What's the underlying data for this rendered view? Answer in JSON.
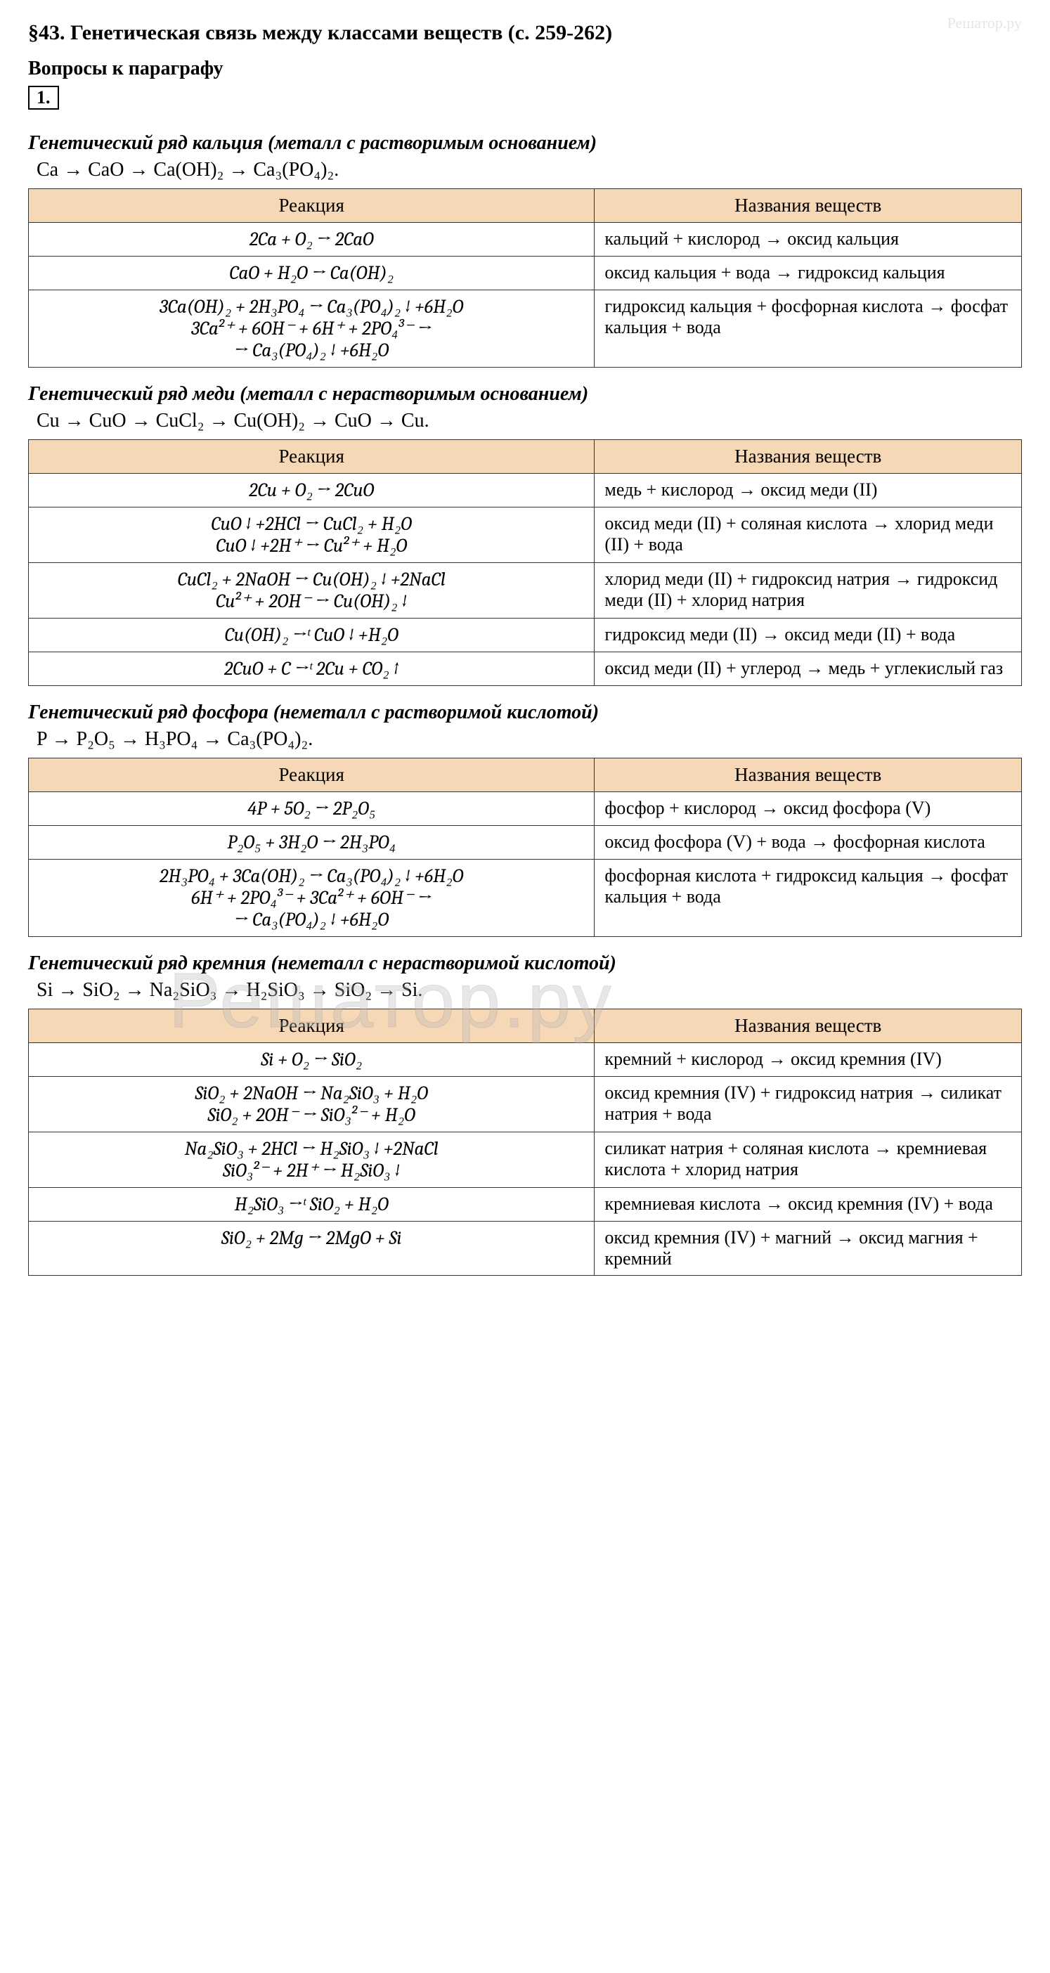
{
  "header": {
    "title": "§43. Генетическая связь между классами веществ (с. 259-262)",
    "subtitle": "Вопросы к параграфу",
    "question_number": "1."
  },
  "watermark": {
    "big": "Решатор.ру",
    "small": "Решатор.ру"
  },
  "sections": [
    {
      "title": "Генетический ряд кальция (металл с растворимым основанием)",
      "chain": "Ca  →  CaO  →  Ca(OH)₂  →  Ca₃(PO₄)₂.",
      "table": {
        "head_reaction": "Реакция",
        "head_names": "Названия веществ",
        "rows": [
          {
            "reaction": "2Ca + O₂ → 2CaO",
            "names": "кальций + кислород → оксид кальция"
          },
          {
            "reaction": "CaO + H₂O → Ca(OH)₂",
            "names": "оксид кальция + вода → гидроксид кальция"
          },
          {
            "reaction": "3Ca(OH)₂ + 2H₃PO₄ → Ca₃(PO₄)₂ ↓ +6H₂O\n3Ca²⁺ + 6OH⁻ + 6H⁺ + 2PO₄³⁻ →\n→ Ca₃(PO₄)₂ ↓ +6H₂O",
            "names": "гидроксид кальция + фосфорная кислота → фосфат кальция + вода"
          }
        ]
      }
    },
    {
      "title": "Генетический ряд меди (металл с нерастворимым основанием)",
      "chain": "Cu → CuO → CuCl₂ → Cu(OH)₂ → CuO → Cu.",
      "table": {
        "head_reaction": "Реакция",
        "head_names": "Названия веществ",
        "rows": [
          {
            "reaction": "2Cu + O₂ → 2CuO",
            "names": "медь + кислород → оксид меди (II)"
          },
          {
            "reaction": "CuO ↓ +2HCl → CuCl₂ + H₂O\nCuO ↓ +2H⁺ → Cu²⁺ + H₂O",
            "names": "оксид меди (II) + соляная кислота → хлорид меди (II) + вода"
          },
          {
            "reaction": "CuCl₂ + 2NaOH → Cu(OH)₂ ↓ +2NaCl\nCu²⁺ + 2OH⁻ → Cu(OH)₂ ↓",
            "names": "хлорид меди (II) + гидроксид натрия → гидроксид меди (II) + хлорид натрия"
          },
          {
            "reaction": "Cu(OH)₂ →ᵗ CuO ↓ +H₂O",
            "names": "гидроксид меди (II) → оксид меди (II) + вода"
          },
          {
            "reaction": "2CuO + C →ᵗ 2Cu + CO₂ ↑",
            "names": "оксид меди (II) + углерод → медь + углекислый газ"
          }
        ]
      }
    },
    {
      "title": "Генетический ряд фосфора (неметалл с растворимой кислотой)",
      "chain": "P → P₂O₅ → H₃PO₄ → Ca₃(PO₄)₂.",
      "table": {
        "head_reaction": "Реакция",
        "head_names": "Названия веществ",
        "rows": [
          {
            "reaction": "4P + 5O₂ → 2P₂O₅",
            "names": "фосфор + кислород → оксид фосфора (V)"
          },
          {
            "reaction": "P₂O₅ + 3H₂O → 2H₃PO₄",
            "names": "оксид фосфора (V) + вода → фосфорная кислота"
          },
          {
            "reaction": "2H₃PO₄ + 3Ca(OH)₂ → Ca₃(PO₄)₂ ↓ +6H₂O\n6H⁺ + 2PO₄³⁻ + 3Ca²⁺ + 6OH⁻ →\n→ Ca₃(PO₄)₂ ↓ +6H₂O",
            "names": "фосфорная кислота + гидроксид кальция → фосфат кальция + вода"
          }
        ]
      }
    },
    {
      "title": "Генетический ряд кремния (неметалл с нерастворимой кислотой)",
      "chain": "Si  →  SiO₂  →  Na₂SiO₃  →  H₂SiO₃  →  SiO₂  →  Si.",
      "table": {
        "head_reaction": "Реакция",
        "head_names": "Названия веществ",
        "rows": [
          {
            "reaction": "Si + O₂ → SiO₂",
            "names": "кремний + кислород → оксид кремния  (IV)"
          },
          {
            "reaction": "SiO₂ + 2NaOH → Na₂SiO₃ + H₂O\nSiO₂ + 2OH⁻ → SiO₃²⁻ + H₂O",
            "names": "оксид кремния  (IV) + гидроксид натрия → силикат натрия + вода"
          },
          {
            "reaction": "Na₂SiO₃ + 2HCl → H₂SiO₃ ↓ +2NaCl\nSiO₃²⁻ + 2H⁺ → H₂SiO₃ ↓",
            "names": "силикат натрия + соляная кислота → кремниевая кислота + хлорид натрия"
          },
          {
            "reaction": "H₂SiO₃ →ᵗ SiO₂ + H₂O",
            "names": "кремниевая кислота → оксид кремния  (IV) + вода"
          },
          {
            "reaction": "SiO₂ + 2Mg → 2MgO + Si",
            "names": "оксид кремния  (IV) + магний → оксид магния + кремний"
          }
        ]
      }
    }
  ],
  "colors": {
    "header_bg": "#f6d7b6",
    "border": "#333333",
    "text": "#000000",
    "background": "#ffffff"
  }
}
